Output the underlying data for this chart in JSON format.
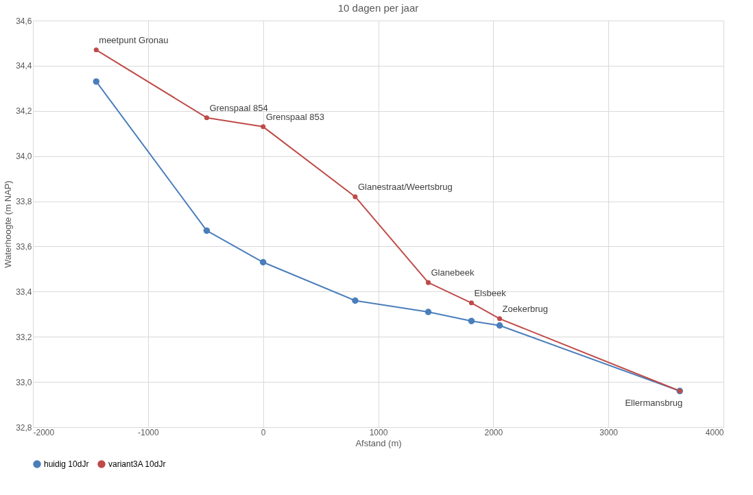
{
  "chart_data": {
    "type": "line",
    "title": "10 dagen per jaar",
    "xlabel": "Afstand (m)",
    "ylabel": "Waterhoogte (m NAP)",
    "series": [
      {
        "name": "huidig 10dJr",
        "color": "#4a7ebb",
        "x": [
          -1450,
          -490,
          0,
          800,
          1435,
          1810,
          2055,
          3620
        ],
        "values": [
          34.33,
          33.67,
          33.53,
          33.36,
          33.31,
          33.27,
          33.25,
          32.96
        ]
      },
      {
        "name": "variant3A 10dJr",
        "color": "#be4b48",
        "x": [
          -1450,
          -490,
          0,
          800,
          1435,
          1810,
          2055,
          3620
        ],
        "values": [
          34.47,
          34.17,
          34.13,
          33.82,
          33.44,
          33.35,
          33.28,
          32.96
        ]
      }
    ],
    "annotations": [
      {
        "text": "meetpunt Gronau",
        "x": -1450,
        "y": 34.47
      },
      {
        "text": "Grenspaal 854",
        "x": -490,
        "y": 34.17
      },
      {
        "text": "Grenspaal 853",
        "x": 0,
        "y": 34.13
      },
      {
        "text": "Glanestraat/Weertsbrug",
        "x": 800,
        "y": 33.82
      },
      {
        "text": "Glanebeek",
        "x": 1435,
        "y": 33.44
      },
      {
        "text": "Elsbeek",
        "x": 1810,
        "y": 33.35
      },
      {
        "text": "Zoekerbrug",
        "x": 2055,
        "y": 33.28
      },
      {
        "text": "Ellermansbrug",
        "x": 3620,
        "y": 32.96
      }
    ],
    "xlim": [
      -2000,
      4000
    ],
    "xticks": [
      -2000,
      -1000,
      0,
      1000,
      2000,
      3000,
      4000
    ],
    "ylim": [
      32.8,
      34.6
    ],
    "yticks": [
      {
        "value": 32.8,
        "label": "32,8"
      },
      {
        "value": 33.0,
        "label": "33,0"
      },
      {
        "value": 33.2,
        "label": "33,2"
      },
      {
        "value": 33.4,
        "label": "33,4"
      },
      {
        "value": 33.6,
        "label": "33,6"
      },
      {
        "value": 33.8,
        "label": "33,8"
      },
      {
        "value": 34.0,
        "label": "34,0"
      },
      {
        "value": 34.2,
        "label": "34,2"
      },
      {
        "value": 34.4,
        "label": "34,4"
      },
      {
        "value": 34.6,
        "label": "34,6"
      }
    ],
    "grid": true,
    "legend": "bottom",
    "marker": "circle",
    "line_style": "solid"
  }
}
